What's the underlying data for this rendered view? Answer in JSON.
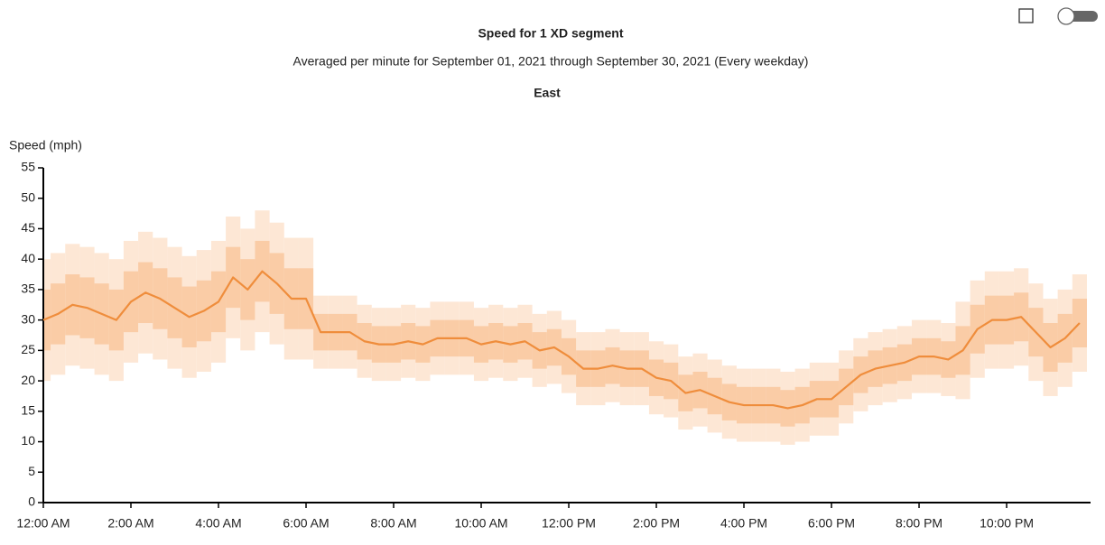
{
  "chart_data": {
    "type": "line",
    "title": "Speed for 1 XD segment",
    "subtitle": "Averaged per minute for September 01, 2021 through September 30, 2021 (Every weekday)",
    "direction": "East",
    "y_label": "Speed (mph)",
    "x": [
      0,
      20,
      40,
      60,
      80,
      100,
      120,
      140,
      160,
      180,
      200,
      220,
      240,
      260,
      280,
      300,
      320,
      340,
      360,
      380,
      400,
      420,
      440,
      460,
      480,
      500,
      520,
      540,
      560,
      580,
      600,
      620,
      640,
      660,
      680,
      700,
      720,
      740,
      760,
      780,
      800,
      820,
      840,
      860,
      880,
      900,
      920,
      940,
      960,
      980,
      1000,
      1020,
      1040,
      1060,
      1080,
      1100,
      1120,
      1140,
      1160,
      1180,
      1200,
      1220,
      1240,
      1260,
      1280,
      1300,
      1320,
      1340,
      1360,
      1380,
      1400,
      1420
    ],
    "xlim": [
      0,
      1435
    ],
    "xticks": [
      {
        "value": 0,
        "label": "12:00 AM"
      },
      {
        "value": 120,
        "label": "2:00 AM"
      },
      {
        "value": 240,
        "label": "4:00 AM"
      },
      {
        "value": 360,
        "label": "6:00 AM"
      },
      {
        "value": 480,
        "label": "8:00 AM"
      },
      {
        "value": 600,
        "label": "10:00 AM"
      },
      {
        "value": 720,
        "label": "12:00 PM"
      },
      {
        "value": 840,
        "label": "2:00 PM"
      },
      {
        "value": 960,
        "label": "4:00 PM"
      },
      {
        "value": 1080,
        "label": "6:00 PM"
      },
      {
        "value": 1200,
        "label": "8:00 PM"
      },
      {
        "value": 1320,
        "label": "10:00 PM"
      }
    ],
    "ylim": [
      0,
      55
    ],
    "yticks": [
      0,
      5,
      10,
      15,
      20,
      25,
      30,
      35,
      40,
      45,
      50,
      55
    ],
    "series": [
      {
        "color": "#ef8d3c",
        "values": [
          30,
          31,
          32.5,
          32,
          31,
          30,
          33,
          34.5,
          33.5,
          32,
          30.5,
          31.5,
          33,
          37,
          35,
          38,
          36,
          33.5,
          33.5,
          28,
          28,
          28,
          26.5,
          26,
          26,
          26.5,
          26,
          27,
          27,
          27,
          26,
          26.5,
          26,
          26.5,
          25,
          25.5,
          24,
          22,
          22,
          22.5,
          22,
          22,
          20.5,
          20,
          18,
          18.5,
          17.5,
          16.5,
          16,
          16,
          16,
          15.5,
          16,
          17,
          17,
          19,
          21,
          22,
          22.5,
          23,
          24,
          24,
          23.5,
          25,
          28.5,
          30,
          30,
          30.5,
          28,
          25.5,
          27,
          29.5
        ]
      }
    ],
    "bands": [
      {
        "color": "#fde4d0",
        "lower": [
          20,
          21,
          22.5,
          22,
          21,
          20,
          23,
          24.5,
          23.5,
          22,
          20.5,
          21.5,
          23,
          27,
          25,
          28,
          26,
          23.5,
          23.5,
          22,
          22,
          22,
          20.5,
          20,
          20,
          20.5,
          20,
          21,
          21,
          21,
          20,
          20.5,
          20,
          20.5,
          19,
          19.5,
          18,
          16,
          16,
          16.5,
          16,
          16,
          14.5,
          14,
          12,
          12.5,
          11.5,
          10.5,
          10,
          10,
          10,
          9.5,
          10,
          11,
          11,
          13,
          15,
          16,
          16.5,
          17,
          18,
          18,
          17.5,
          17,
          20.5,
          22,
          22,
          22.5,
          20,
          17.5,
          19,
          21.5
        ],
        "upper": [
          40,
          41,
          42.5,
          42,
          41,
          40,
          43,
          44.5,
          43.5,
          42,
          40.5,
          41.5,
          43,
          47,
          45,
          48,
          46,
          43.5,
          43.5,
          34,
          34,
          34,
          32.5,
          32,
          32,
          32.5,
          32,
          33,
          33,
          33,
          32,
          32.5,
          32,
          32.5,
          31,
          31.5,
          30,
          28,
          28,
          28.5,
          28,
          28,
          26.5,
          26,
          24,
          24.5,
          23.5,
          22.5,
          22,
          22,
          22,
          21.5,
          22,
          23,
          23,
          25,
          27,
          28,
          28.5,
          29,
          30,
          30,
          29.5,
          33,
          36.5,
          38,
          38,
          38.5,
          36,
          33.5,
          35,
          37.5
        ]
      },
      {
        "color": "#f9c9a1",
        "lower": [
          25,
          26,
          27.5,
          27,
          26,
          25,
          28,
          29.5,
          28.5,
          27,
          25.5,
          26.5,
          28,
          32,
          30,
          33,
          31,
          28.5,
          28.5,
          25,
          25,
          25,
          23.5,
          23,
          23,
          23.5,
          23,
          24,
          24,
          24,
          23,
          23.5,
          23,
          23.5,
          22,
          22.5,
          21,
          19,
          19,
          19.5,
          19,
          19,
          17.5,
          17,
          15,
          15.5,
          14.5,
          13.5,
          13,
          13,
          13,
          12.5,
          13,
          14,
          14,
          16,
          18,
          19,
          19.5,
          20,
          21,
          21,
          20.5,
          21,
          24.5,
          26,
          26,
          26.5,
          24,
          21.5,
          23,
          25.5
        ],
        "upper": [
          35,
          36,
          37.5,
          37,
          36,
          35,
          38,
          39.5,
          38.5,
          37,
          35.5,
          36.5,
          38,
          42,
          40,
          43,
          41,
          38.5,
          38.5,
          31,
          31,
          31,
          29.5,
          29,
          29,
          29.5,
          29,
          30,
          30,
          30,
          29,
          29.5,
          29,
          29.5,
          28,
          28.5,
          27,
          25,
          25,
          25.5,
          25,
          25,
          23.5,
          23,
          21,
          21.5,
          20.5,
          19.5,
          19,
          19,
          19,
          18.5,
          19,
          20,
          20,
          22,
          24,
          25,
          25.5,
          26,
          27,
          27,
          26.5,
          29,
          32.5,
          34,
          34,
          34.5,
          32,
          29.5,
          31,
          33.5
        ]
      }
    ]
  }
}
